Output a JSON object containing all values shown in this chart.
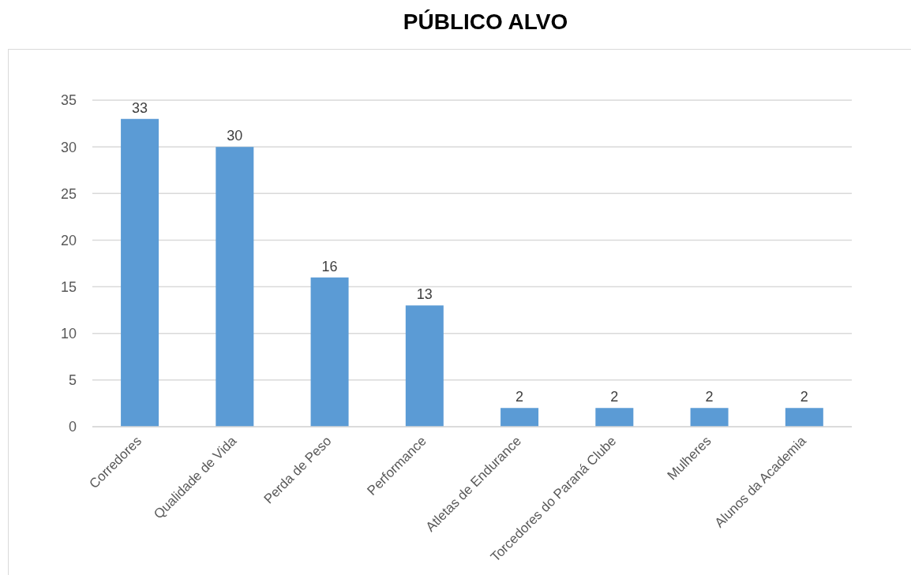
{
  "chart_data": {
    "type": "bar",
    "title": "PÚBLICO ALVO",
    "categories": [
      "Corredores",
      "Qualidade de Vida",
      "Perda de Peso",
      "Performance",
      "Atletas de Endurance",
      "Torcedores do Paraná Clube",
      "Mulheres",
      "Alunos da Academia"
    ],
    "values": [
      33,
      30,
      16,
      13,
      2,
      2,
      2,
      2
    ],
    "color": "#5b9bd5",
    "ylim": [
      0,
      35
    ],
    "yticks": [
      0,
      5,
      10,
      15,
      20,
      25,
      30,
      35
    ],
    "grid": "y",
    "data_labels": true
  }
}
